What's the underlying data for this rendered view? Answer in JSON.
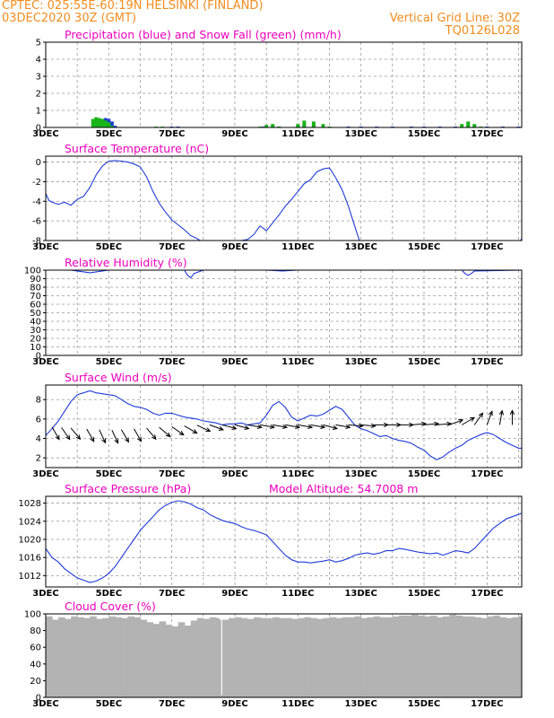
{
  "header": {
    "line1": "CPTEC:   025:55E-60:19N   HELSINKI (FINLAND)",
    "line2": "03DEC2020 30Z (GMT)",
    "grid_note": "Vertical Grid Line: 30Z",
    "code": "TQ0126L028"
  },
  "colors": {
    "orange": "#f28c1e",
    "magenta": "#ee00bb",
    "blue": "#1f3bd8",
    "green": "#18b418",
    "gray": "#b3b3b3",
    "black": "#000000"
  },
  "x_axis": {
    "start_day": 3,
    "end_day": 18.1,
    "label_days": [
      3,
      5,
      7,
      9,
      11,
      13,
      15,
      17
    ],
    "labels": [
      "3DEC",
      "5DEC",
      "7DEC",
      "9DEC",
      "11DEC",
      "13DEC",
      "15DEC",
      "17DEC"
    ]
  },
  "chart_data": [
    {
      "type": "area",
      "title": "Precipitation (blue) and Snow Fall (green) (mm/h)",
      "ylim": [
        0,
        5
      ],
      "yticks": [
        0,
        1,
        2,
        3,
        4,
        5
      ],
      "series": [
        {
          "name": "Precipitation",
          "color": "blue",
          "x": [
            4.7,
            4.8,
            4.9,
            5.0,
            5.1,
            5.2,
            7.0,
            7.2,
            9.9,
            10.2,
            10.4,
            11.0,
            11.2,
            11.5,
            12.0,
            12.6,
            13.0,
            13.5,
            14.0,
            14.6,
            15.0,
            15.5,
            16.0,
            16.4,
            16.6,
            17.0,
            17.5,
            18.0
          ],
          "values": [
            0.1,
            0.45,
            0.55,
            0.5,
            0.35,
            0.1,
            0.05,
            0.05,
            0.05,
            0.05,
            0.05,
            0.15,
            0.2,
            0.15,
            0.05,
            0.05,
            0.05,
            0.05,
            0.05,
            0.05,
            0.05,
            0.05,
            0.05,
            0.1,
            0.1,
            0.05,
            0.05,
            0.05
          ]
        },
        {
          "name": "Snow Fall",
          "color": "green",
          "x": [
            4.5,
            4.6,
            4.7,
            4.8,
            4.9,
            5.0,
            5.1,
            6.5,
            6.7,
            9.8,
            10.0,
            10.2,
            10.4,
            11.0,
            11.2,
            11.5,
            11.8,
            12.0,
            16.2,
            16.4,
            16.6,
            16.8
          ],
          "values": [
            0.5,
            0.6,
            0.55,
            0.5,
            0.4,
            0.3,
            0.1,
            0.05,
            0.05,
            0.05,
            0.15,
            0.2,
            0.05,
            0.2,
            0.4,
            0.35,
            0.2,
            0.05,
            0.2,
            0.35,
            0.2,
            0.05
          ]
        }
      ]
    },
    {
      "type": "line",
      "title": "Surface Temperature (nC)",
      "ylim": [
        -8,
        0.6
      ],
      "yticks": [
        0,
        -2,
        -4,
        -6,
        -8
      ],
      "series": [
        {
          "name": "Temperature",
          "color": "blue",
          "x": [
            3.0,
            3.1,
            3.2,
            3.4,
            3.6,
            3.8,
            4.0,
            4.2,
            4.4,
            4.6,
            4.8,
            5.0,
            5.2,
            5.4,
            5.6,
            5.8,
            6.0,
            6.2,
            6.4,
            6.6,
            6.8,
            7.0,
            7.2,
            7.4,
            7.6,
            7.8,
            8.0,
            8.2,
            8.4,
            8.6,
            8.8,
            9.0,
            9.2,
            9.4,
            9.6,
            9.8,
            10.0,
            10.2,
            10.4,
            10.6,
            10.8,
            11.0,
            11.2,
            11.4,
            11.6,
            11.8,
            12.0,
            12.2,
            12.4,
            12.6,
            12.8,
            13.0,
            13.2,
            17.8,
            18.0,
            18.1
          ],
          "values": [
            -3.2,
            -3.9,
            -4.1,
            -4.3,
            -4.1,
            -4.4,
            -3.8,
            -3.5,
            -2.6,
            -1.3,
            -0.4,
            0.1,
            0.15,
            0.1,
            0.0,
            -0.2,
            -0.5,
            -1.5,
            -3.0,
            -4.2,
            -5.1,
            -5.9,
            -6.4,
            -6.9,
            -7.5,
            -7.8,
            -8.2,
            -8.6,
            -8.8,
            -9.0,
            -9.0,
            -8.5,
            -8.0,
            -7.9,
            -7.4,
            -6.5,
            -7.0,
            -6.2,
            -5.4,
            -4.5,
            -3.8,
            -3.0,
            -2.2,
            -1.8,
            -1.0,
            -0.7,
            -0.6,
            -1.6,
            -2.8,
            -4.5,
            -6.5,
            -8.5,
            -9.0,
            -9.0,
            -8.4,
            -7.8
          ]
        }
      ]
    },
    {
      "type": "line",
      "title": "Relative Humidity (%)",
      "ylim": [
        0,
        100
      ],
      "yticks": [
        0,
        10,
        20,
        30,
        40,
        50,
        60,
        70,
        80,
        90,
        100
      ],
      "series": [
        {
          "name": "Relative Humidity",
          "color": "blue",
          "x": [
            3.0,
            3.8,
            4.0,
            4.2,
            4.4,
            4.6,
            4.8,
            5.0,
            6.0,
            7.4,
            7.5,
            7.6,
            7.7,
            8.0,
            10.0,
            10.5,
            11.0,
            12.0,
            16.2,
            16.3,
            16.4,
            16.5,
            16.6,
            18.1
          ],
          "values": [
            100,
            100,
            99,
            98,
            97,
            98,
            99,
            100,
            100,
            100,
            94,
            91,
            96,
            100,
            100,
            99,
            100,
            100,
            100,
            96,
            94,
            96,
            99,
            100
          ]
        }
      ]
    },
    {
      "type": "line",
      "title": "Surface Wind (m/s)",
      "ylim": [
        1,
        9.5
      ],
      "yticks": [
        2,
        4,
        6,
        8
      ],
      "series": [
        {
          "name": "Wind speed",
          "color": "blue",
          "x": [
            3.0,
            3.2,
            3.4,
            3.6,
            3.8,
            4.0,
            4.2,
            4.4,
            4.6,
            4.8,
            5.0,
            5.2,
            5.4,
            5.6,
            5.8,
            6.0,
            6.2,
            6.4,
            6.6,
            6.8,
            7.0,
            7.2,
            7.4,
            7.6,
            7.8,
            8.0,
            8.2,
            8.4,
            8.6,
            8.8,
            9.0,
            9.2,
            9.4,
            9.6,
            9.8,
            10.0,
            10.2,
            10.4,
            10.6,
            10.8,
            11.0,
            11.2,
            11.4,
            11.6,
            11.8,
            12.0,
            12.2,
            12.4,
            12.6,
            12.8,
            13.0,
            13.2,
            13.4,
            13.6,
            13.8,
            14.0,
            14.2,
            14.4,
            14.6,
            14.8,
            15.0,
            15.2,
            15.4,
            15.6,
            15.8,
            16.0,
            16.2,
            16.4,
            16.6,
            16.8,
            17.0,
            17.2,
            17.4,
            17.6,
            17.8,
            18.0,
            18.1
          ],
          "values": [
            4.3,
            5.0,
            5.8,
            6.8,
            7.8,
            8.5,
            8.7,
            8.9,
            8.7,
            8.6,
            8.5,
            8.4,
            8.0,
            7.6,
            7.3,
            7.2,
            7.0,
            6.6,
            6.4,
            6.6,
            6.6,
            6.4,
            6.2,
            6.1,
            6.0,
            5.8,
            5.7,
            5.6,
            5.4,
            5.5,
            5.5,
            5.6,
            5.4,
            5.5,
            5.6,
            6.4,
            7.4,
            7.8,
            7.2,
            6.2,
            5.8,
            6.1,
            6.4,
            6.3,
            6.5,
            6.9,
            7.3,
            7.0,
            6.2,
            5.4,
            5.0,
            4.8,
            4.5,
            4.2,
            4.3,
            4.0,
            3.8,
            3.7,
            3.5,
            3.1,
            2.8,
            2.2,
            1.8,
            2.1,
            2.6,
            3.0,
            3.3,
            3.8,
            4.1,
            4.4,
            4.6,
            4.4,
            4.0,
            3.6,
            3.3,
            3.0,
            3.0
          ]
        },
        {
          "name": "Wind direction",
          "color": "black",
          "x": [
            3.2,
            3.5,
            3.8,
            4.3,
            4.7,
            5.1,
            5.4,
            5.8,
            6.2,
            6.6,
            7.0,
            7.4,
            7.8,
            8.2,
            8.6,
            9.0,
            9.4,
            9.8,
            10.2,
            10.6,
            11.0,
            11.4,
            11.8,
            12.2,
            12.6,
            13.0,
            13.4,
            13.8,
            14.2,
            14.6,
            15.0,
            15.4,
            15.8,
            16.2,
            16.6,
            17.0,
            17.4,
            17.8
          ],
          "values": [
            330,
            325,
            320,
            330,
            335,
            335,
            330,
            330,
            320,
            310,
            305,
            300,
            295,
            290,
            285,
            285,
            280,
            280,
            280,
            280,
            280,
            280,
            285,
            280,
            275,
            275,
            270,
            270,
            270,
            265,
            265,
            265,
            250,
            240,
            215,
            200,
            190,
            180
          ]
        }
      ]
    },
    {
      "type": "line",
      "title": "Surface Pressure (hPa)",
      "subtitle": "Model Altitude: 54.7008 m",
      "ylim": [
        1009.5,
        1029.5
      ],
      "yticks": [
        1012,
        1016,
        1020,
        1024,
        1028
      ],
      "series": [
        {
          "name": "Pressure",
          "color": "blue",
          "x": [
            3.0,
            3.2,
            3.4,
            3.6,
            3.8,
            4.0,
            4.2,
            4.4,
            4.6,
            4.8,
            5.0,
            5.2,
            5.4,
            5.6,
            5.8,
            6.0,
            6.2,
            6.4,
            6.6,
            6.8,
            7.0,
            7.2,
            7.4,
            7.6,
            7.8,
            8.0,
            8.2,
            8.4,
            8.6,
            8.8,
            9.0,
            9.2,
            9.4,
            9.6,
            9.8,
            10.0,
            10.2,
            10.4,
            10.6,
            10.8,
            11.0,
            11.2,
            11.4,
            11.6,
            11.8,
            12.0,
            12.2,
            12.4,
            12.6,
            12.8,
            13.0,
            13.2,
            13.4,
            13.6,
            13.8,
            14.0,
            14.2,
            14.4,
            14.6,
            14.8,
            15.0,
            15.2,
            15.4,
            15.6,
            15.8,
            16.0,
            16.2,
            16.4,
            16.6,
            16.8,
            17.0,
            17.2,
            17.4,
            17.6,
            17.8,
            18.0,
            18.1
          ],
          "values": [
            1018,
            1016,
            1015,
            1013.5,
            1012.5,
            1011.5,
            1011,
            1010.5,
            1010.8,
            1011.5,
            1012.5,
            1014,
            1016,
            1018,
            1020,
            1022,
            1023.5,
            1025,
            1026.5,
            1027.5,
            1028.2,
            1028.5,
            1028.3,
            1027.8,
            1027,
            1026.5,
            1025.5,
            1024.8,
            1024.2,
            1023.8,
            1023.5,
            1022.8,
            1022.3,
            1022,
            1021.5,
            1021,
            1019.5,
            1018,
            1016.5,
            1015.5,
            1015,
            1015,
            1014.8,
            1015,
            1015.2,
            1015.5,
            1015,
            1015.3,
            1015.8,
            1016.5,
            1016.8,
            1017,
            1016.7,
            1017,
            1017.5,
            1017.5,
            1018,
            1017.8,
            1017.5,
            1017.2,
            1017,
            1016.8,
            1017,
            1016.5,
            1017,
            1017.5,
            1017.3,
            1017,
            1018,
            1019.5,
            1021,
            1022.5,
            1023.5,
            1024.5,
            1025,
            1025.5,
            1025.8
          ]
        }
      ]
    },
    {
      "type": "area",
      "title": "Cloud Cover (%)",
      "ylim": [
        0,
        100
      ],
      "yticks": [
        0,
        20,
        40,
        60,
        80,
        100
      ],
      "series": [
        {
          "name": "Cloud Cover",
          "color": "gray",
          "x": [
            3.0,
            3.2,
            3.4,
            3.6,
            3.8,
            4.0,
            4.2,
            4.4,
            4.6,
            4.8,
            5.0,
            5.2,
            5.4,
            5.6,
            5.8,
            6.0,
            6.2,
            6.4,
            6.6,
            6.8,
            7.0,
            7.2,
            7.4,
            7.6,
            7.8,
            8.0,
            8.2,
            8.4,
            8.5,
            8.55,
            8.6,
            8.8,
            9.0,
            9.2,
            9.4,
            9.6,
            9.8,
            10.0,
            10.2,
            10.4,
            10.6,
            10.8,
            11.0,
            11.2,
            11.4,
            11.6,
            11.8,
            12.0,
            12.2,
            12.4,
            12.6,
            12.8,
            13.0,
            13.2,
            13.4,
            13.6,
            13.8,
            14.0,
            14.2,
            14.4,
            14.6,
            14.8,
            15.0,
            15.2,
            15.4,
            15.6,
            15.8,
            16.0,
            16.2,
            16.4,
            16.6,
            16.8,
            17.0,
            17.2,
            17.4,
            17.6,
            17.8,
            18.0,
            18.1
          ],
          "values": [
            97,
            93,
            96,
            94,
            97,
            96,
            95,
            97,
            94,
            95,
            97,
            96,
            95,
            97,
            96,
            93,
            90,
            88,
            91,
            87,
            85,
            90,
            86,
            92,
            95,
            94,
            96,
            95,
            93,
            3,
            93,
            95,
            96,
            95,
            94,
            96,
            95,
            95,
            96,
            95,
            95,
            94,
            95,
            96,
            95,
            94,
            95,
            96,
            95,
            96,
            96,
            97,
            95,
            96,
            97,
            96,
            96,
            97,
            98,
            98,
            99,
            98,
            97,
            98,
            96,
            97,
            99,
            98,
            97,
            97,
            96,
            95,
            97,
            98,
            96,
            95,
            96,
            97,
            96
          ]
        }
      ]
    }
  ]
}
